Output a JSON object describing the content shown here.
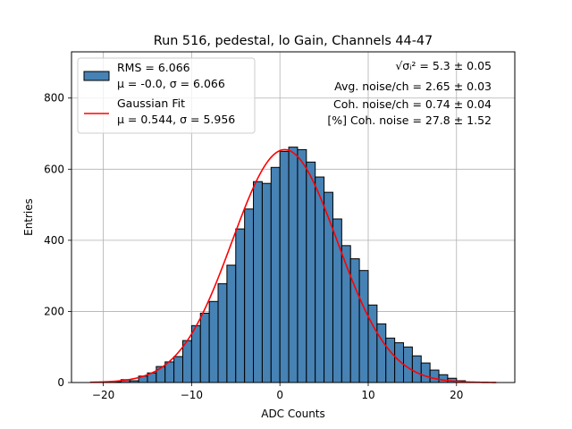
{
  "chart_data": {
    "type": "bar",
    "title": "Run 516, pedestal, lo Gain, Channels 44-47",
    "xlabel": "ADC Counts",
    "ylabel": "Entries",
    "xlim": [
      -23.6,
      26.6
    ],
    "ylim": [
      0,
      930
    ],
    "xticks": [
      -20,
      -10,
      0,
      10,
      20
    ],
    "xtick_labels": [
      "−20",
      "−10",
      "0",
      "10",
      "20"
    ],
    "yticks": [
      0,
      200,
      400,
      600,
      800
    ],
    "ytick_labels": [
      "0",
      "200",
      "400",
      "600",
      "800"
    ],
    "grid": true,
    "bin_width": 1,
    "bin_edges_start": -19,
    "histogram": {
      "name": "RMS = 6.066",
      "color": "#4682b4",
      "edge_color": "#000000",
      "counts": [
        2,
        8,
        5,
        18,
        27,
        45,
        58,
        73,
        118,
        160,
        195,
        228,
        278,
        330,
        432,
        488,
        565,
        560,
        605,
        650,
        662,
        655,
        620,
        578,
        535,
        460,
        385,
        348,
        315,
        218,
        165,
        125,
        112,
        100,
        75,
        55,
        35,
        22,
        12,
        5
      ]
    },
    "fit": {
      "name": "Gaussian Fit",
      "color": "#ff0000",
      "mu": 0.544,
      "sigma": 5.956,
      "amplitude": 655,
      "x_range": [
        -21.5,
        24.5
      ]
    },
    "legend": {
      "placement": "upper-left",
      "entries": [
        {
          "line1": "RMS = 6.066",
          "line2": "μ = -0.0, σ = 6.066"
        },
        {
          "line1": "Gaussian Fit",
          "line2": "μ = 0.544, σ = 5.956"
        }
      ]
    },
    "annotations": {
      "placement": "upper-right",
      "lines": [
        "√σᵢ² = 5.3 ± 0.05",
        "Avg. noise/ch = 2.65 ± 0.03",
        "Coh. noise/ch = 0.74 ± 0.04",
        "[%] Coh. noise = 27.8 ± 1.52"
      ]
    }
  }
}
